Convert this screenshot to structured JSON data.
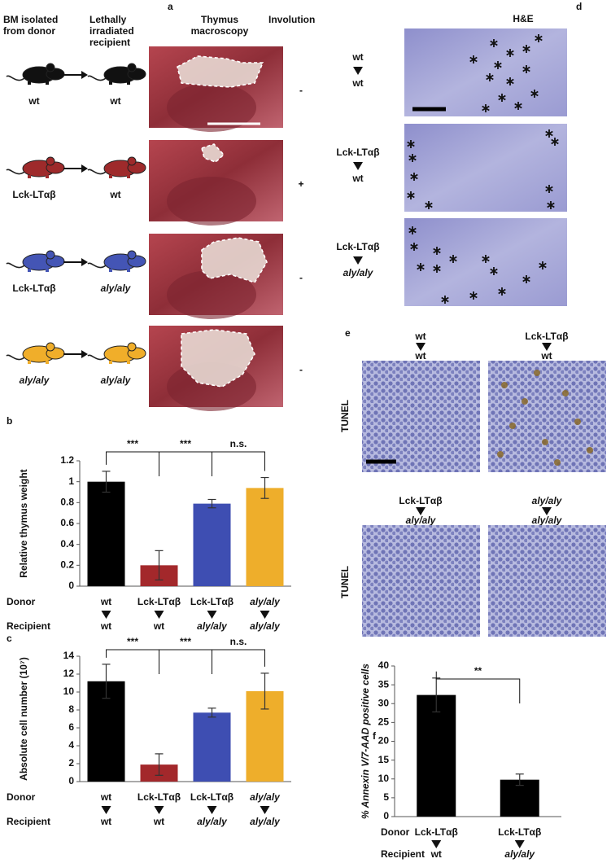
{
  "panel_a": {
    "letter": "a",
    "headers": [
      "BM isolated from donor",
      "Lethally irradiated recipient",
      "Thymus macroscopy",
      "Involution"
    ],
    "rows": [
      {
        "donor": "wt",
        "recipient": "wt",
        "involution": "-",
        "color": "#111111"
      },
      {
        "donor": "Lck-LTαβ",
        "recipient": "wt",
        "involution": "+",
        "color": "#9e2a2b"
      },
      {
        "donor": "Lck-LTαβ",
        "recipient": "aly/aly",
        "involution": "-",
        "color": "#4455b5"
      },
      {
        "donor": "aly/aly",
        "recipient": "aly/aly",
        "involution": "-",
        "color": "#f0ae2a"
      }
    ]
  },
  "panel_d": {
    "letter": "d",
    "title": "H&E",
    "rows": [
      {
        "donor": "wt",
        "recipient": "wt"
      },
      {
        "donor": "Lck-LTαβ",
        "recipient": "wt"
      },
      {
        "donor": "Lck-LTαβ",
        "recipient": "aly/aly"
      }
    ]
  },
  "panel_e": {
    "letter": "e",
    "row_label": "TUNEL",
    "images": [
      {
        "donor": "wt",
        "recipient": "wt"
      },
      {
        "donor": "Lck-LTαβ",
        "recipient": "wt"
      },
      {
        "donor": "Lck-LTαβ",
        "recipient": "aly/aly"
      },
      {
        "donor": "aly/aly",
        "recipient": "aly/aly"
      }
    ]
  },
  "chart_data": [
    {
      "type": "bar",
      "panel": "b",
      "ylabel": "Relative thymus weight",
      "categories": [
        "wt",
        "Lck-LTαβ",
        "Lck-LTαβ",
        "aly/aly"
      ],
      "recipients": [
        "wt",
        "wt",
        "aly/aly",
        "aly/aly"
      ],
      "row_labels": [
        "Donor",
        "Recipient"
      ],
      "values": [
        1,
        0.2,
        0.79,
        0.94
      ],
      "errors": [
        0.1,
        0.14,
        0.04,
        0.1
      ],
      "colors": [
        "#000000",
        "#a3282b",
        "#3e4eb2",
        "#eeae2b"
      ],
      "ylim": [
        0,
        1.2
      ],
      "yticks": [
        0,
        0.2,
        0.4,
        0.6,
        0.8,
        1,
        1.2
      ],
      "significance": [
        "***",
        "***",
        "n.s."
      ]
    },
    {
      "type": "bar",
      "panel": "c",
      "ylabel": "Absolute cell number (10⁷)",
      "categories": [
        "wt",
        "Lck-LTαβ",
        "Lck-LTαβ",
        "aly/aly"
      ],
      "recipients": [
        "wt",
        "wt",
        "aly/aly",
        "aly/aly"
      ],
      "row_labels": [
        "Donor",
        "Recipient"
      ],
      "values": [
        11.2,
        1.9,
        7.7,
        10.1
      ],
      "errors": [
        1.9,
        1.2,
        0.5,
        2.0
      ],
      "colors": [
        "#000000",
        "#a3282b",
        "#3e4eb2",
        "#eeae2b"
      ],
      "ylim": [
        0,
        14
      ],
      "yticks": [
        0,
        2,
        4,
        6,
        8,
        10,
        12,
        14
      ],
      "significance": [
        "***",
        "***",
        "n.s."
      ]
    },
    {
      "type": "bar",
      "panel": "f",
      "ylabel": "% Annexin V/7-AAD positive cells",
      "categories": [
        "Lck-LTαβ",
        "Lck-LTαβ"
      ],
      "recipients": [
        "wt",
        "aly/aly"
      ],
      "row_labels": [
        "Donor",
        "Recipient"
      ],
      "values": [
        32.3,
        9.8
      ],
      "errors": [
        4.5,
        1.5
      ],
      "colors": [
        "#000000",
        "#000000"
      ],
      "ylim": [
        0,
        40
      ],
      "yticks": [
        0,
        5,
        10,
        15,
        20,
        25,
        30,
        35,
        40
      ],
      "significance": [
        "**"
      ]
    }
  ]
}
